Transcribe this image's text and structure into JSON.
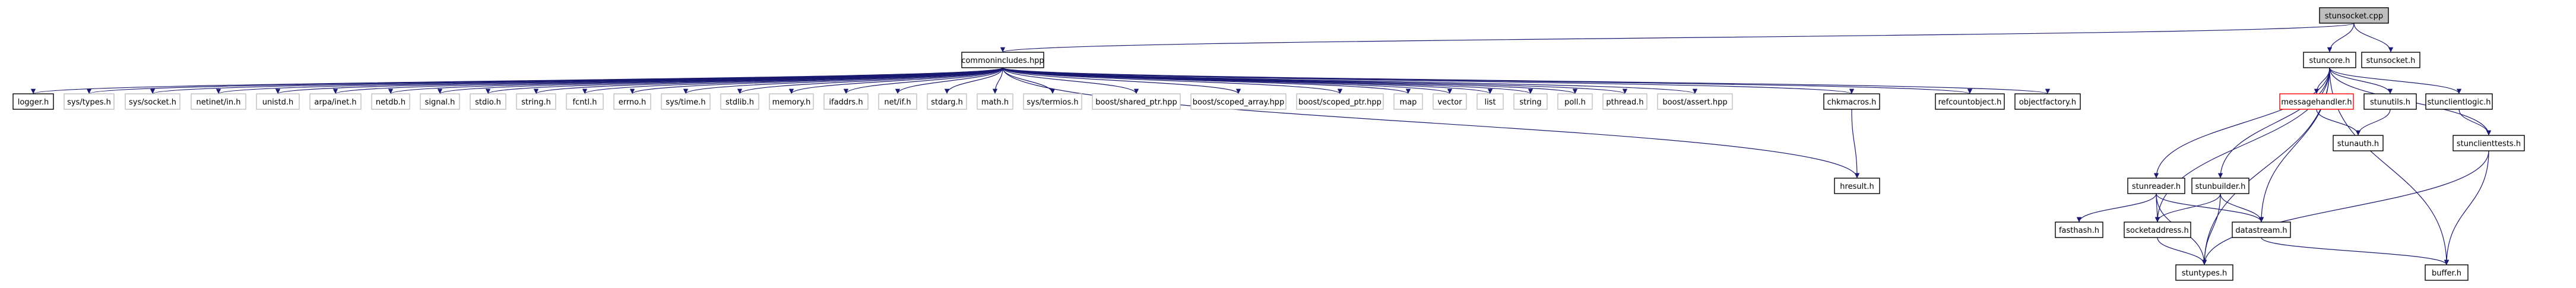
{
  "colors": {
    "edge": "#191970",
    "root_fill": "#bfbfbf",
    "node_border": "#000000",
    "ext_border": "#bfbfbf",
    "missing_border": "#ff0000",
    "missing_text": "#ff0000"
  },
  "nodes": [
    {
      "id": "stunsocket_cpp",
      "label": "stunsocket.cpp",
      "kind": "root"
    },
    {
      "id": "commonincludes_hpp",
      "label": "commonincludes.hpp",
      "kind": "local"
    },
    {
      "id": "stunsocket_h",
      "label": "stunsocket.h",
      "kind": "local"
    },
    {
      "id": "logger_h",
      "label": "logger.h",
      "kind": "local"
    },
    {
      "id": "sys_types_h",
      "label": "sys/types.h",
      "kind": "external"
    },
    {
      "id": "sys_socket_h",
      "label": "sys/socket.h",
      "kind": "external"
    },
    {
      "id": "netinet_in_h",
      "label": "netinet/in.h",
      "kind": "external"
    },
    {
      "id": "unistd_h",
      "label": "unistd.h",
      "kind": "external"
    },
    {
      "id": "arpa_inet_h",
      "label": "arpa/inet.h",
      "kind": "external"
    },
    {
      "id": "netdb_h",
      "label": "netdb.h",
      "kind": "external"
    },
    {
      "id": "signal_h",
      "label": "signal.h",
      "kind": "external"
    },
    {
      "id": "stdio_h",
      "label": "stdio.h",
      "kind": "external"
    },
    {
      "id": "string_h",
      "label": "string.h",
      "kind": "external"
    },
    {
      "id": "fcntl_h",
      "label": "fcntl.h",
      "kind": "external"
    },
    {
      "id": "errno_h",
      "label": "errno.h",
      "kind": "external"
    },
    {
      "id": "sys_time_h",
      "label": "sys/time.h",
      "kind": "external"
    },
    {
      "id": "stdlib_h",
      "label": "stdlib.h",
      "kind": "external"
    },
    {
      "id": "memory_h",
      "label": "memory.h",
      "kind": "external"
    },
    {
      "id": "ifaddrs_h",
      "label": "ifaddrs.h",
      "kind": "external"
    },
    {
      "id": "net_if_h",
      "label": "net/if.h",
      "kind": "external"
    },
    {
      "id": "stdarg_h",
      "label": "stdarg.h",
      "kind": "external"
    },
    {
      "id": "math_h",
      "label": "math.h",
      "kind": "external"
    },
    {
      "id": "sys_termios_h",
      "label": "sys/termios.h",
      "kind": "external"
    },
    {
      "id": "boost_shared_ptr",
      "label": "boost/shared_ptr.hpp",
      "kind": "external"
    },
    {
      "id": "boost_scoped_array",
      "label": "boost/scoped_array.hpp",
      "kind": "external"
    },
    {
      "id": "boost_scoped_ptr",
      "label": "boost/scoped_ptr.hpp",
      "kind": "external"
    },
    {
      "id": "map",
      "label": "map",
      "kind": "external"
    },
    {
      "id": "vector",
      "label": "vector",
      "kind": "external"
    },
    {
      "id": "list",
      "label": "list",
      "kind": "external"
    },
    {
      "id": "string",
      "label": "string",
      "kind": "external"
    },
    {
      "id": "poll_h",
      "label": "poll.h",
      "kind": "external"
    },
    {
      "id": "pthread_h",
      "label": "pthread.h",
      "kind": "external"
    },
    {
      "id": "boost_assert",
      "label": "boost/assert.hpp",
      "kind": "external"
    },
    {
      "id": "chkmacros_h",
      "label": "chkmacros.h",
      "kind": "local"
    },
    {
      "id": "refcountobject_h",
      "label": "refcountobject.h",
      "kind": "local"
    },
    {
      "id": "objectfactory_h",
      "label": "objectfactory.h",
      "kind": "local"
    },
    {
      "id": "hresult_h",
      "label": "hresult.h",
      "kind": "local"
    },
    {
      "id": "stuncore_h",
      "label": "stuncore.h",
      "kind": "local"
    },
    {
      "id": "messagehandler_h",
      "label": "messagehandler.h",
      "kind": "missing"
    },
    {
      "id": "stunutils_h",
      "label": "stunutils.h",
      "kind": "local"
    },
    {
      "id": "stunclientlogic_h",
      "label": "stunclientlogic.h",
      "kind": "local"
    },
    {
      "id": "stunauth_h",
      "label": "stunauth.h",
      "kind": "local"
    },
    {
      "id": "stunclienttests_h",
      "label": "stunclienttests.h",
      "kind": "local"
    },
    {
      "id": "stunbuilder_h",
      "label": "stunbuilder.h",
      "kind": "local"
    },
    {
      "id": "stunreader_h",
      "label": "stunreader.h",
      "kind": "local"
    },
    {
      "id": "fasthash_h",
      "label": "fasthash.h",
      "kind": "local"
    },
    {
      "id": "socketaddress_h",
      "label": "socketaddress.h",
      "kind": "local"
    },
    {
      "id": "datastream_h",
      "label": "datastream.h",
      "kind": "local"
    },
    {
      "id": "stuntypes_h",
      "label": "stuntypes.h",
      "kind": "local"
    },
    {
      "id": "buffer_h",
      "label": "buffer.h",
      "kind": "local"
    }
  ],
  "edges": [
    [
      "stunsocket_cpp",
      "commonincludes_hpp"
    ],
    [
      "stunsocket_cpp",
      "stuncore_h"
    ],
    [
      "stunsocket_cpp",
      "stunsocket_h"
    ],
    [
      "commonincludes_hpp",
      "logger_h"
    ],
    [
      "commonincludes_hpp",
      "sys_types_h"
    ],
    [
      "commonincludes_hpp",
      "sys_socket_h"
    ],
    [
      "commonincludes_hpp",
      "netinet_in_h"
    ],
    [
      "commonincludes_hpp",
      "unistd_h"
    ],
    [
      "commonincludes_hpp",
      "arpa_inet_h"
    ],
    [
      "commonincludes_hpp",
      "netdb_h"
    ],
    [
      "commonincludes_hpp",
      "signal_h"
    ],
    [
      "commonincludes_hpp",
      "stdio_h"
    ],
    [
      "commonincludes_hpp",
      "string_h"
    ],
    [
      "commonincludes_hpp",
      "fcntl_h"
    ],
    [
      "commonincludes_hpp",
      "errno_h"
    ],
    [
      "commonincludes_hpp",
      "sys_time_h"
    ],
    [
      "commonincludes_hpp",
      "stdlib_h"
    ],
    [
      "commonincludes_hpp",
      "memory_h"
    ],
    [
      "commonincludes_hpp",
      "ifaddrs_h"
    ],
    [
      "commonincludes_hpp",
      "net_if_h"
    ],
    [
      "commonincludes_hpp",
      "stdarg_h"
    ],
    [
      "commonincludes_hpp",
      "math_h"
    ],
    [
      "commonincludes_hpp",
      "sys_termios_h"
    ],
    [
      "commonincludes_hpp",
      "boost_shared_ptr"
    ],
    [
      "commonincludes_hpp",
      "boost_scoped_array"
    ],
    [
      "commonincludes_hpp",
      "boost_scoped_ptr"
    ],
    [
      "commonincludes_hpp",
      "map"
    ],
    [
      "commonincludes_hpp",
      "vector"
    ],
    [
      "commonincludes_hpp",
      "list"
    ],
    [
      "commonincludes_hpp",
      "string"
    ],
    [
      "commonincludes_hpp",
      "poll_h"
    ],
    [
      "commonincludes_hpp",
      "pthread_h"
    ],
    [
      "commonincludes_hpp",
      "boost_assert"
    ],
    [
      "commonincludes_hpp",
      "chkmacros_h"
    ],
    [
      "commonincludes_hpp",
      "refcountobject_h"
    ],
    [
      "commonincludes_hpp",
      "objectfactory_h"
    ],
    [
      "commonincludes_hpp",
      "hresult_h"
    ],
    [
      "chkmacros_h",
      "hresult_h"
    ],
    [
      "stuncore_h",
      "messagehandler_h"
    ],
    [
      "stuncore_h",
      "stunutils_h"
    ],
    [
      "stuncore_h",
      "stunclientlogic_h"
    ],
    [
      "stuncore_h",
      "stunclienttests_h"
    ],
    [
      "stuncore_h",
      "stunbuilder_h"
    ],
    [
      "stuncore_h",
      "stunreader_h"
    ],
    [
      "stuncore_h",
      "socketaddress_h"
    ],
    [
      "stuncore_h",
      "stuntypes_h"
    ],
    [
      "stuncore_h",
      "datastream_h"
    ],
    [
      "stuncore_h",
      "buffer_h"
    ],
    [
      "messagehandler_h",
      "stunauth_h"
    ],
    [
      "stunutils_h",
      "stunauth_h"
    ],
    [
      "stunclientlogic_h",
      "stunclienttests_h"
    ],
    [
      "stunclienttests_h",
      "buffer_h"
    ],
    [
      "stunclienttests_h",
      "stuntypes_h"
    ],
    [
      "stunbuilder_h",
      "socketaddress_h"
    ],
    [
      "stunbuilder_h",
      "datastream_h"
    ],
    [
      "stunbuilder_h",
      "stuntypes_h"
    ],
    [
      "stunreader_h",
      "fasthash_h"
    ],
    [
      "stunreader_h",
      "socketaddress_h"
    ],
    [
      "stunreader_h",
      "datastream_h"
    ],
    [
      "stunreader_h",
      "stuntypes_h"
    ],
    [
      "socketaddress_h",
      "stuntypes_h"
    ],
    [
      "datastream_h",
      "buffer_h"
    ]
  ]
}
